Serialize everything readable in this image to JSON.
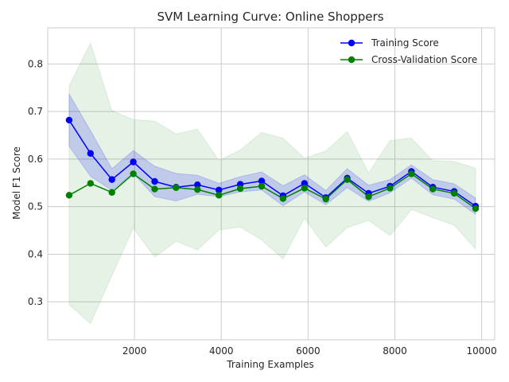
{
  "chart_data": {
    "type": "line",
    "title": "SVM Learning Curve: Online Shoppers",
    "xlabel": "Training Examples",
    "ylabel": "Model F1 Score",
    "xlim": [
      0,
      10300
    ],
    "ylim": [
      0.22,
      0.876
    ],
    "xticks": [
      2000,
      4000,
      6000,
      8000,
      10000
    ],
    "yticks": [
      0.3,
      0.4,
      0.5,
      0.6,
      0.7,
      0.8
    ],
    "grid": true,
    "legend_position": "upper right",
    "x": [
      493,
      986,
      1479,
      1972,
      2465,
      2958,
      3451,
      3944,
      4437,
      4930,
      5423,
      5916,
      6409,
      6902,
      7395,
      7888,
      8381,
      8874,
      9367,
      9860
    ],
    "series": [
      {
        "name": "Training Score",
        "color": "#0000ff",
        "values": [
          0.682,
          0.612,
          0.557,
          0.594,
          0.553,
          0.541,
          0.546,
          0.535,
          0.547,
          0.554,
          0.523,
          0.549,
          0.519,
          0.56,
          0.528,
          0.543,
          0.574,
          0.541,
          0.532,
          0.501
        ],
        "lower": [
          0.627,
          0.564,
          0.534,
          0.57,
          0.521,
          0.512,
          0.526,
          0.521,
          0.531,
          0.535,
          0.502,
          0.531,
          0.504,
          0.54,
          0.511,
          0.529,
          0.56,
          0.525,
          0.516,
          0.484
        ],
        "upper": [
          0.737,
          0.66,
          0.58,
          0.618,
          0.585,
          0.57,
          0.566,
          0.549,
          0.563,
          0.573,
          0.544,
          0.567,
          0.534,
          0.58,
          0.545,
          0.557,
          0.588,
          0.557,
          0.548,
          0.518
        ]
      },
      {
        "name": "Cross-Validation Score",
        "color": "#008000",
        "values": [
          0.524,
          0.549,
          0.53,
          0.569,
          0.537,
          0.54,
          0.536,
          0.524,
          0.538,
          0.543,
          0.517,
          0.539,
          0.516,
          0.557,
          0.521,
          0.539,
          0.569,
          0.537,
          0.528,
          0.496
        ],
        "lower": [
          0.294,
          0.254,
          0.355,
          0.455,
          0.394,
          0.427,
          0.409,
          0.451,
          0.457,
          0.43,
          0.39,
          0.476,
          0.415,
          0.456,
          0.471,
          0.439,
          0.494,
          0.477,
          0.461,
          0.411
        ],
        "upper": [
          0.754,
          0.844,
          0.702,
          0.683,
          0.68,
          0.653,
          0.663,
          0.597,
          0.619,
          0.656,
          0.644,
          0.602,
          0.617,
          0.658,
          0.571,
          0.639,
          0.644,
          0.597,
          0.595,
          0.581
        ]
      }
    ]
  }
}
